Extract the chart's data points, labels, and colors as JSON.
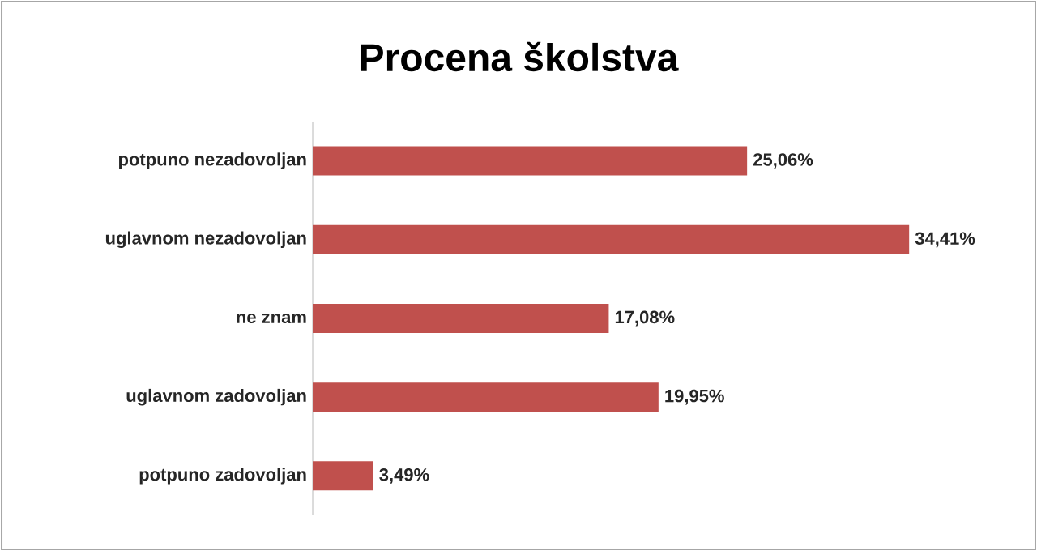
{
  "chart_data": {
    "type": "bar",
    "orientation": "horizontal",
    "title": "Procena školstva",
    "categories": [
      "potpuno nezadovoljan",
      "uglavnom nezadovoljan",
      "ne znam",
      "uglavnom zadovoljan",
      "potpuno zadovoljan"
    ],
    "values": [
      25.06,
      34.41,
      17.08,
      19.95,
      3.49
    ],
    "value_labels": [
      "25,06%",
      "34,41%",
      "17,08%",
      "19,95%",
      "3,49%"
    ],
    "color": "#c0504d"
  }
}
